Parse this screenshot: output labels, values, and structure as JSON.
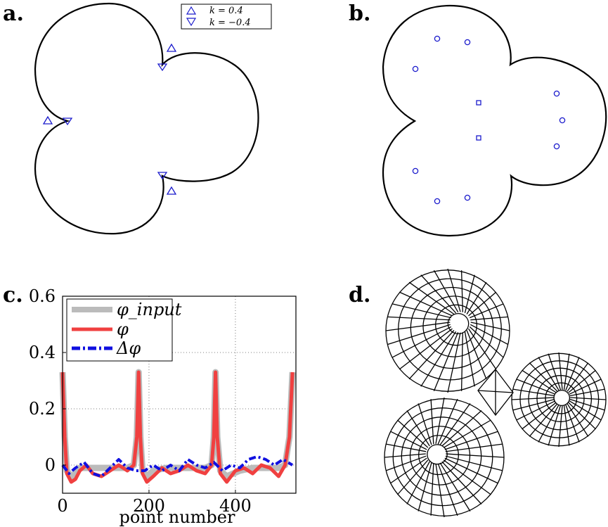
{
  "panels": {
    "a": {
      "label": "a.",
      "legend": [
        {
          "symbol": "△",
          "text": "k = 0.4"
        },
        {
          "symbol": "▽",
          "text": "k = −0.4"
        }
      ]
    },
    "b": {
      "label": "b."
    },
    "c": {
      "label": "c."
    },
    "d": {
      "label": "d."
    }
  },
  "chart_data": {
    "type": "line",
    "xlabel": "point number",
    "ylabel": "",
    "xlim": [
      0,
      540
    ],
    "ylim": [
      -0.1,
      0.6
    ],
    "x_ticks": [
      0,
      200,
      400
    ],
    "y_ticks": [
      0,
      0.2,
      0.4,
      0.6
    ],
    "x_tick_labels": [
      "0",
      "200",
      "400"
    ],
    "y_tick_labels": [
      "0",
      "0.2",
      "0.4",
      "0.6"
    ],
    "grid": true,
    "legend_position": "top-left",
    "series": [
      {
        "name": "φ_input",
        "color": "#bbbbbb",
        "style": "solid",
        "x": [
          0,
          5,
          10,
          20,
          30,
          40,
          60,
          90,
          120,
          150,
          165,
          172,
          176,
          180,
          185,
          195,
          210,
          240,
          270,
          300,
          330,
          345,
          350,
          354,
          358,
          365,
          380,
          410,
          440,
          470,
          500,
          515,
          525,
          532
        ],
        "y": [
          0.33,
          0.1,
          -0.02,
          -0.04,
          -0.03,
          -0.01,
          -0.01,
          -0.01,
          -0.01,
          -0.01,
          0.0,
          0.1,
          0.33,
          0.1,
          -0.02,
          -0.04,
          -0.02,
          -0.01,
          -0.01,
          -0.01,
          -0.01,
          0.0,
          0.1,
          0.33,
          0.1,
          -0.02,
          -0.04,
          -0.02,
          -0.01,
          -0.01,
          -0.01,
          0.0,
          0.1,
          0.33
        ]
      },
      {
        "name": "φ",
        "color": "#f04040",
        "style": "solid",
        "x": [
          0,
          5,
          10,
          20,
          30,
          40,
          55,
          70,
          90,
          110,
          130,
          150,
          165,
          172,
          176,
          180,
          185,
          195,
          210,
          230,
          250,
          270,
          290,
          310,
          330,
          345,
          350,
          354,
          358,
          365,
          380,
          400,
          420,
          440,
          460,
          480,
          500,
          515,
          525,
          532
        ],
        "y": [
          0.33,
          0.1,
          -0.03,
          -0.06,
          -0.05,
          -0.02,
          0.0,
          -0.03,
          -0.04,
          -0.02,
          0.0,
          -0.02,
          0.0,
          0.1,
          0.33,
          0.1,
          -0.03,
          -0.06,
          -0.04,
          -0.01,
          -0.03,
          -0.02,
          0.0,
          -0.02,
          -0.03,
          0.0,
          0.1,
          0.33,
          0.1,
          -0.03,
          -0.06,
          -0.02,
          -0.01,
          -0.03,
          0.0,
          -0.01,
          -0.04,
          0.0,
          0.1,
          0.33
        ]
      },
      {
        "name": "Δφ",
        "color": "#1010e0",
        "style": "dashdot",
        "x": [
          0,
          15,
          30,
          50,
          70,
          90,
          110,
          130,
          150,
          170,
          190,
          210,
          230,
          250,
          270,
          290,
          310,
          330,
          350,
          370,
          390,
          410,
          430,
          450,
          470,
          490,
          510,
          532
        ],
        "y": [
          0.0,
          -0.03,
          -0.01,
          0.01,
          -0.03,
          -0.04,
          -0.01,
          0.02,
          -0.01,
          -0.02,
          -0.02,
          0.0,
          -0.02,
          0.0,
          -0.02,
          0.02,
          0.0,
          -0.01,
          0.01,
          -0.02,
          0.0,
          -0.01,
          0.02,
          0.03,
          0.02,
          0.0,
          0.02,
          0.0
        ]
      }
    ]
  }
}
